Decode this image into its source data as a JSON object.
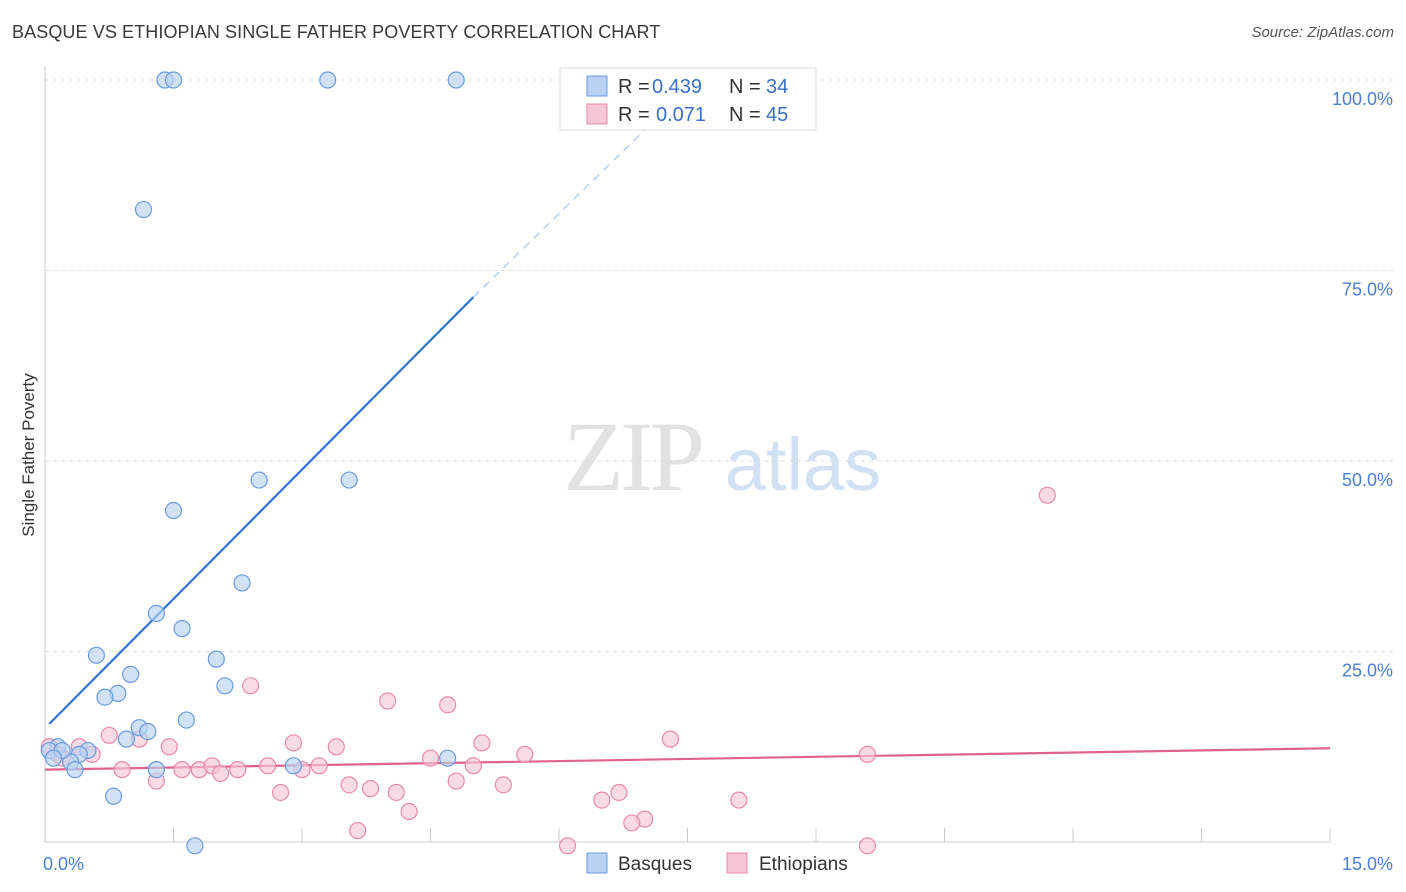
{
  "header": {
    "title": "BASQUE VS ETHIOPIAN SINGLE FATHER POVERTY CORRELATION CHART",
    "source": "Source: ZipAtlas.com"
  },
  "watermark": {
    "zip": "ZIP",
    "atlas": "atlas"
  },
  "colors": {
    "basque_fill": "#b9d2f3",
    "basque_stroke": "#6a9be0",
    "basque_line": "#2f74d0",
    "ethiopian_fill": "#f7c6d6",
    "ethiopian_stroke": "#e88aab",
    "ethiopian_line": "#e0628f",
    "tick_text": "#4a7fd0",
    "grid": "#dddddd"
  },
  "legend": {
    "rows": [
      {
        "r_label": "R =",
        "r_value": "0.439",
        "n_label": "N =",
        "n_value": "34"
      },
      {
        "r_label": "R =",
        "r_value": "0.071",
        "n_label": "N =",
        "n_value": "45"
      }
    ]
  },
  "chart_data": {
    "type": "scatter",
    "title": "BASQUE VS ETHIOPIAN SINGLE FATHER POVERTY CORRELATION CHART",
    "xlabel": "",
    "ylabel": "Single Father Poverty",
    "xlim": [
      0,
      15
    ],
    "ylim": [
      0,
      100
    ],
    "x_tick_labels": [
      "0.0%",
      "15.0%"
    ],
    "y_tick_labels": [
      "25.0%",
      "50.0%",
      "75.0%",
      "100.0%"
    ],
    "y_ticks": [
      25,
      50,
      75,
      100
    ],
    "legend_placement": "top-center",
    "series": [
      {
        "name": "Basques",
        "R": 0.439,
        "N": 34,
        "points": [
          [
            1.4,
            100
          ],
          [
            1.5,
            100
          ],
          [
            3.3,
            100
          ],
          [
            4.8,
            100
          ],
          [
            1.15,
            83
          ],
          [
            2.5,
            47.5
          ],
          [
            3.55,
            47.5
          ],
          [
            1.5,
            43.5
          ],
          [
            2.3,
            34
          ],
          [
            1.3,
            30
          ],
          [
            1.6,
            28
          ],
          [
            0.6,
            24.5
          ],
          [
            2.0,
            24
          ],
          [
            1.0,
            22
          ],
          [
            2.1,
            20.5
          ],
          [
            0.85,
            19.5
          ],
          [
            0.7,
            19
          ],
          [
            1.1,
            15
          ],
          [
            1.2,
            14.5
          ],
          [
            0.95,
            13.5
          ],
          [
            1.65,
            16
          ],
          [
            0.5,
            12
          ],
          [
            0.15,
            12.5
          ],
          [
            0.05,
            12
          ],
          [
            0.4,
            11.5
          ],
          [
            0.3,
            10.5
          ],
          [
            0.35,
            9.5
          ],
          [
            1.3,
            9.5
          ],
          [
            2.9,
            10
          ],
          [
            4.7,
            11
          ],
          [
            0.8,
            6
          ],
          [
            1.75,
            -0.5
          ],
          [
            0.2,
            12
          ],
          [
            0.1,
            11
          ]
        ],
        "trend": {
          "x": [
            0.05,
            5.0
          ],
          "y": [
            15.5,
            71.5
          ],
          "extend_dashed_to": [
            7.6,
            100
          ]
        }
      },
      {
        "name": "Ethiopians",
        "R": 0.071,
        "N": 45,
        "points": [
          [
            0.05,
            12.5
          ],
          [
            0.15,
            11.5
          ],
          [
            0.2,
            11
          ],
          [
            0.4,
            12.5
          ],
          [
            0.55,
            11.5
          ],
          [
            0.75,
            14
          ],
          [
            1.1,
            13.5
          ],
          [
            0.9,
            9.5
          ],
          [
            1.3,
            8
          ],
          [
            1.45,
            12.5
          ],
          [
            1.6,
            9.5
          ],
          [
            1.8,
            9.5
          ],
          [
            1.95,
            10
          ],
          [
            2.05,
            9
          ],
          [
            2.25,
            9.5
          ],
          [
            2.4,
            20.5
          ],
          [
            2.6,
            10
          ],
          [
            2.75,
            6.5
          ],
          [
            2.9,
            13
          ],
          [
            3.0,
            9.5
          ],
          [
            3.2,
            10
          ],
          [
            3.4,
            12.5
          ],
          [
            3.55,
            7.5
          ],
          [
            3.65,
            1.5
          ],
          [
            3.8,
            7
          ],
          [
            4.0,
            18.5
          ],
          [
            4.1,
            6.5
          ],
          [
            4.25,
            4
          ],
          [
            4.5,
            11
          ],
          [
            4.7,
            18
          ],
          [
            4.8,
            8
          ],
          [
            5.0,
            10
          ],
          [
            5.1,
            13
          ],
          [
            5.35,
            7.5
          ],
          [
            5.6,
            11.5
          ],
          [
            6.1,
            -0.5
          ],
          [
            6.5,
            5.5
          ],
          [
            6.7,
            6.5
          ],
          [
            7.3,
            13.5
          ],
          [
            7.0,
            3
          ],
          [
            6.85,
            2.5
          ],
          [
            8.1,
            5.5
          ],
          [
            9.6,
            11.5
          ],
          [
            11.7,
            45.5
          ],
          [
            9.6,
            -0.5
          ]
        ],
        "trend": {
          "x": [
            0.0,
            15.0
          ],
          "y": [
            9.5,
            12.3
          ]
        }
      }
    ]
  }
}
